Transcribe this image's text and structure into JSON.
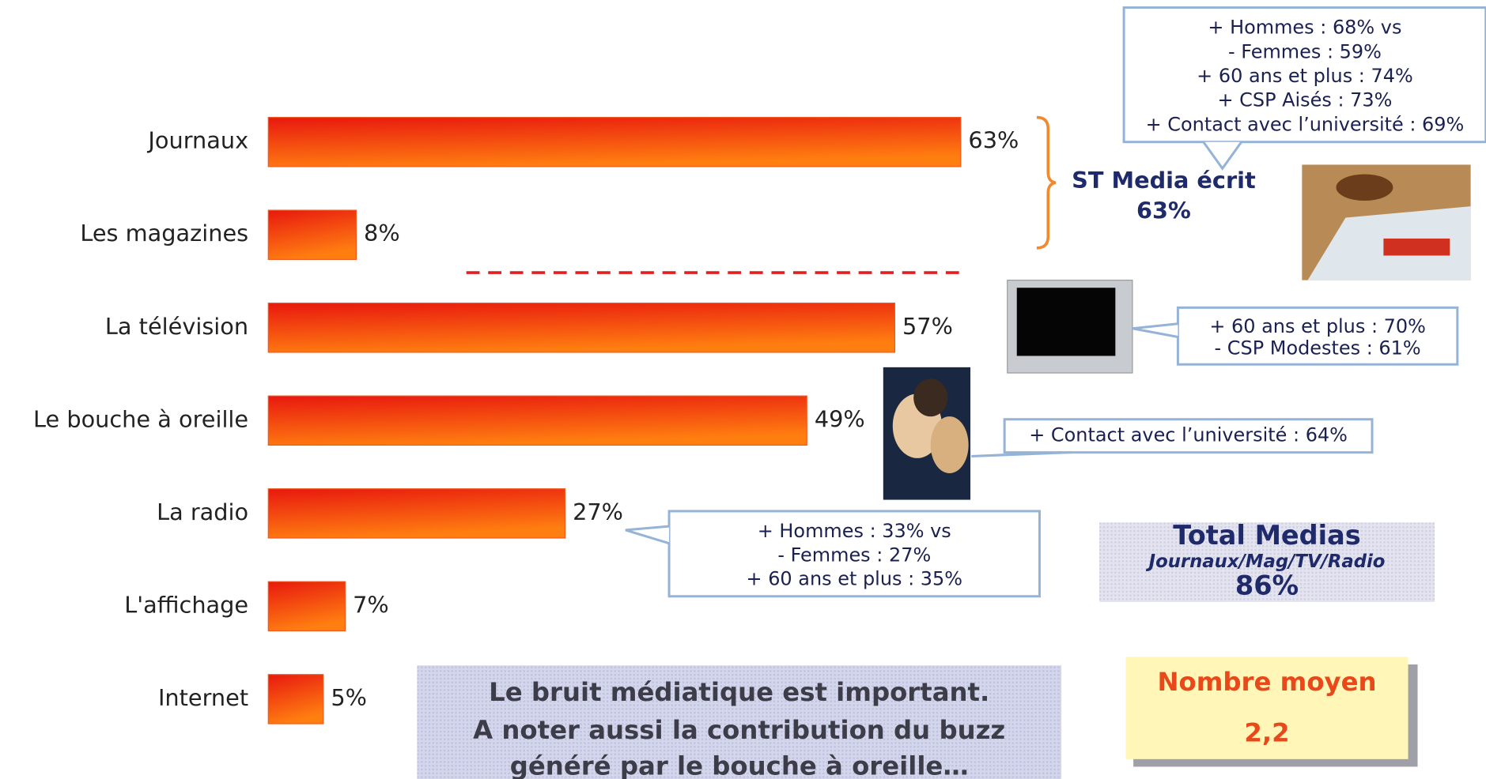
{
  "chart_data": {
    "type": "bar",
    "orientation": "horizontal",
    "color": "#f03c10",
    "categories": [
      "Journaux",
      "Les magazines",
      "La télévision",
      "Le bouche à oreille",
      "La radio",
      "L'affichage",
      "Internet"
    ],
    "values": [
      63,
      8,
      57,
      49,
      27,
      7,
      5
    ],
    "value_labels": [
      "63%",
      "8%",
      "57%",
      "49%",
      "27%",
      "7%",
      "5%"
    ],
    "bracket": {
      "lines": [
        "ST Media écrit",
        "63%"
      ]
    },
    "callouts": [
      {
        "lines": [
          "+ Hommes : 68% vs",
          "- Femmes : 59%",
          "+ 60 ans et plus : 74%",
          "+ CSP Aisés : 73%",
          "+ Contact avec l’université : 69%"
        ]
      },
      {
        "lines": [
          "+ 60 ans et plus : 70%",
          "- CSP Modestes : 61%"
        ]
      },
      {
        "lines": [
          "+ Contact avec l’université : 64%"
        ]
      },
      {
        "lines": [
          "+ Hommes : 33% vs",
          "- Femmes : 27%",
          "+ 60 ans et plus : 35%"
        ]
      }
    ],
    "total": {
      "title": "Total Medias",
      "subtitle": "Journaux/Mag/TV/Radio",
      "value": "86%"
    },
    "note": {
      "lines": [
        "Le bruit médiatique est important.",
        "A noter aussi la contribution du buzz",
        "généré par le bouche à oreille…"
      ]
    },
    "average": {
      "label": "Nombre moyen",
      "value": "2,2"
    }
  }
}
